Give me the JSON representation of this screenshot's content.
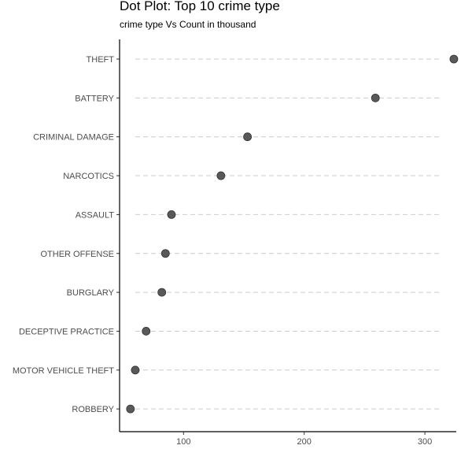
{
  "chart_data": {
    "type": "scatter",
    "title": "Dot Plot: Top 10 crime type",
    "subtitle": "crime type Vs Count in thousand",
    "xlabel": "",
    "ylabel": "",
    "xlim": [
      47,
      326
    ],
    "xticks": [
      100,
      200,
      300
    ],
    "grid": "dashed horizontal reference lines per category",
    "categories": [
      "THEFT",
      "BATTERY",
      "CRIMINAL DAMAGE",
      "NARCOTICS",
      "ASSAULT",
      "OTHER OFFENSE",
      "BURGLARY",
      "DECEPTIVE PRACTICE",
      "MOTOR VEHICLE THEFT",
      "ROBBERY"
    ],
    "values": [
      324,
      259,
      153,
      131,
      90,
      85,
      82,
      69,
      60,
      56
    ],
    "colors": {
      "point": "#595959",
      "point_stroke": "#333333",
      "guide": "#cccccc",
      "axis": "#000000"
    }
  }
}
